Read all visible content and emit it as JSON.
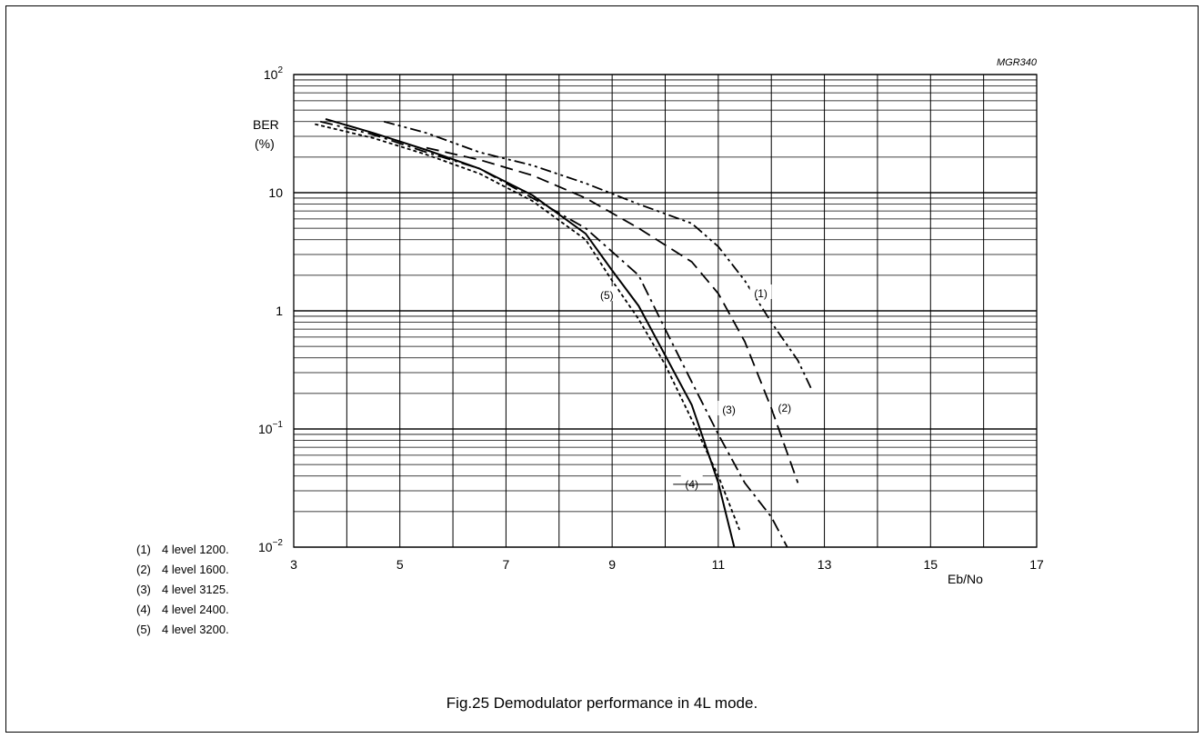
{
  "figure_id": "MGR340",
  "caption": "Fig.25  Demodulator performance in 4L mode.",
  "legend": [
    {
      "num": "(1)",
      "text": "4 level 1200."
    },
    {
      "num": "(2)",
      "text": "4 level 1600."
    },
    {
      "num": "(3)",
      "text": "4 level 3125."
    },
    {
      "num": "(4)",
      "text": "4 level 2400."
    },
    {
      "num": "(5)",
      "text": "4 level 3200."
    }
  ],
  "chart_data": {
    "type": "line",
    "title": "",
    "ylabel": "BER",
    "ylabel_unit": "(%)",
    "xlabel": "Eb/No",
    "xlim": [
      3,
      17
    ],
    "ylim": [
      0.01,
      100
    ],
    "y_scale": "log",
    "grid": true,
    "x_ticks": [
      3,
      5,
      7,
      9,
      11,
      13,
      15,
      17
    ],
    "y_ticks": [
      {
        "value": 100,
        "base": "10",
        "exp": "2"
      },
      {
        "value": 10,
        "base": "10",
        "exp": ""
      },
      {
        "value": 1,
        "base": "1",
        "exp": ""
      },
      {
        "value": 0.1,
        "base": "10",
        "exp": "−1"
      },
      {
        "value": 0.01,
        "base": "10",
        "exp": "−2"
      }
    ],
    "series": [
      {
        "name": "(1)",
        "style": "dash-dot-dot",
        "x": [
          4.7,
          5.5,
          6.5,
          7.5,
          8.5,
          9.5,
          10.5,
          11.0,
          11.5,
          12.0,
          12.5,
          12.75
        ],
        "y": [
          40,
          32,
          22,
          17,
          12,
          8,
          5.5,
          3.5,
          1.8,
          0.8,
          0.38,
          0.22
        ],
        "label_at": [
          11.8,
          1.4
        ]
      },
      {
        "name": "(2)",
        "style": "dashed",
        "x": [
          5.5,
          6.5,
          7.5,
          8.5,
          9.5,
          10.5,
          11.0,
          11.5,
          12.0,
          12.5
        ],
        "y": [
          24,
          19,
          14,
          9,
          5,
          2.6,
          1.4,
          0.55,
          0.15,
          0.035
        ],
        "label_at": [
          12.25,
          0.15
        ]
      },
      {
        "name": "(3)",
        "style": "dash-dot",
        "x": [
          3.5,
          4.5,
          5.5,
          6.5,
          7.5,
          8.5,
          9.5,
          10.0,
          10.5,
          11.0,
          11.5,
          12.0,
          12.3
        ],
        "y": [
          40,
          31,
          22,
          16,
          9,
          5,
          2,
          0.7,
          0.25,
          0.09,
          0.035,
          0.018,
          0.01
        ],
        "label_at": [
          11.2,
          0.145
        ]
      },
      {
        "name": "(4)",
        "style": "solid",
        "x": [
          3.6,
          4.5,
          5.5,
          6.5,
          7.5,
          8.5,
          9.0,
          9.5,
          10.0,
          10.5,
          11.0,
          11.3
        ],
        "y": [
          42,
          32,
          23,
          16,
          9.5,
          4.5,
          2.2,
          1.1,
          0.42,
          0.16,
          0.035,
          0.01
        ],
        "label_at": [
          10.5,
          0.034
        ]
      },
      {
        "name": "(5)",
        "style": "dotted",
        "x": [
          3.4,
          4.5,
          5.5,
          6.5,
          7.5,
          8.5,
          9.0,
          9.5,
          10.0,
          10.5,
          11.0,
          11.4
        ],
        "y": [
          38,
          29,
          21,
          14.5,
          8.5,
          4,
          1.8,
          0.85,
          0.35,
          0.12,
          0.04,
          0.014
        ],
        "label_at": [
          8.9,
          1.35
        ]
      }
    ]
  }
}
